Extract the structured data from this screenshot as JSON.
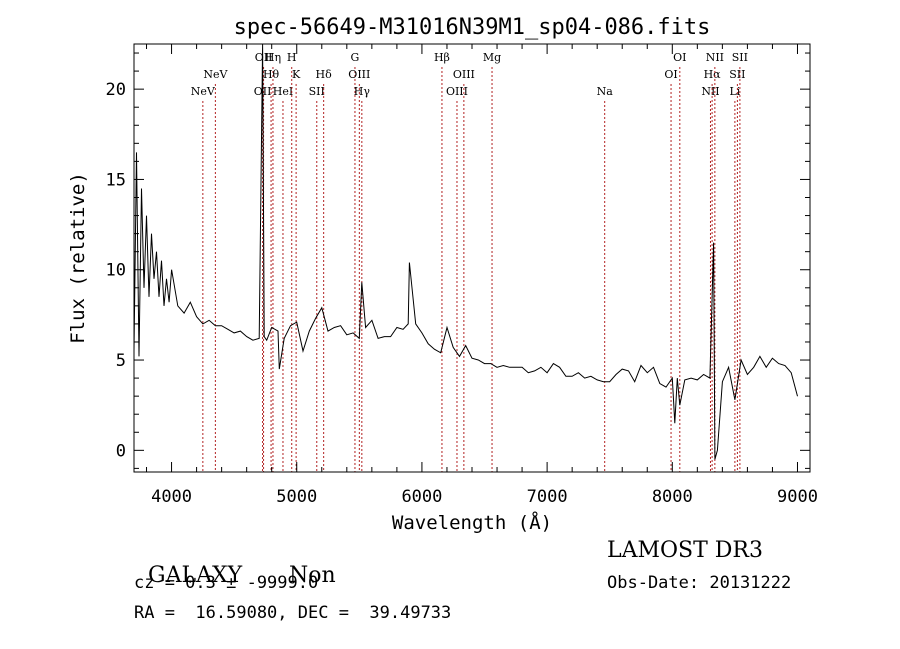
{
  "chart_data": {
    "type": "line",
    "title": "spec-56649-M31016N39M1_sp04-086.fits",
    "xlabel": "Wavelength (Å)",
    "ylabel": "Flux (relative)",
    "xlim": [
      3700,
      9100
    ],
    "ylim": [
      -1.2,
      22.5
    ],
    "x_ticks": [
      4000,
      5000,
      6000,
      7000,
      8000,
      9000
    ],
    "y_ticks": [
      0,
      5,
      10,
      15,
      20
    ],
    "grid": false,
    "series": [
      {
        "name": "spectrum",
        "x": [
          3700,
          3720,
          3740,
          3760,
          3780,
          3800,
          3820,
          3840,
          3860,
          3880,
          3900,
          3920,
          3940,
          3960,
          3980,
          4000,
          4050,
          4100,
          4150,
          4200,
          4250,
          4300,
          4350,
          4400,
          4450,
          4500,
          4550,
          4600,
          4650,
          4700,
          4727,
          4740,
          4760,
          4800,
          4850,
          4861,
          4900,
          4950,
          5000,
          5050,
          5100,
          5150,
          5200,
          5250,
          5300,
          5350,
          5400,
          5450,
          5500,
          5520,
          5550,
          5600,
          5650,
          5700,
          5750,
          5800,
          5850,
          5890,
          5900,
          5950,
          6000,
          6050,
          6100,
          6150,
          6200,
          6250,
          6300,
          6350,
          6400,
          6450,
          6500,
          6550,
          6600,
          6650,
          6700,
          6750,
          6800,
          6850,
          6900,
          6950,
          7000,
          7050,
          7100,
          7150,
          7200,
          7250,
          7300,
          7350,
          7400,
          7450,
          7500,
          7550,
          7600,
          7650,
          7700,
          7750,
          7800,
          7850,
          7900,
          7950,
          8000,
          8020,
          8040,
          8060,
          8100,
          8150,
          8200,
          8250,
          8300,
          8330,
          8340,
          8360,
          8400,
          8450,
          8500,
          8550,
          8600,
          8650,
          8700,
          8750,
          8800,
          8850,
          8900,
          8950,
          9000
        ],
        "y": [
          5.5,
          16.5,
          5.2,
          14.5,
          9.0,
          13.0,
          8.5,
          12.0,
          9.5,
          11.0,
          8.5,
          10.5,
          8.0,
          9.5,
          8.2,
          10.0,
          8.0,
          7.6,
          8.2,
          7.4,
          7.0,
          7.2,
          6.9,
          6.9,
          6.7,
          6.5,
          6.6,
          6.3,
          6.1,
          6.2,
          22.5,
          6.3,
          6.1,
          6.8,
          6.6,
          4.5,
          6.2,
          6.9,
          7.1,
          5.5,
          6.6,
          7.3,
          7.9,
          6.6,
          6.8,
          6.9,
          6.4,
          6.5,
          6.2,
          9.3,
          6.8,
          7.2,
          6.2,
          6.3,
          6.3,
          6.8,
          6.7,
          7.0,
          10.4,
          7.0,
          6.5,
          5.9,
          5.6,
          5.4,
          6.8,
          5.7,
          5.2,
          5.8,
          5.1,
          5.0,
          4.8,
          4.8,
          4.6,
          4.7,
          4.6,
          4.6,
          4.6,
          4.3,
          4.4,
          4.6,
          4.3,
          4.8,
          4.6,
          4.1,
          4.1,
          4.3,
          4.0,
          4.1,
          3.9,
          3.8,
          3.8,
          4.2,
          4.5,
          4.4,
          3.8,
          4.7,
          4.3,
          4.6,
          3.7,
          3.5,
          4.0,
          1.5,
          4.0,
          2.5,
          3.9,
          4.0,
          3.9,
          4.2,
          4.0,
          11.5,
          -0.5,
          0.0,
          3.8,
          4.6,
          2.8,
          5.0,
          4.2,
          4.6,
          5.2,
          4.6,
          5.1,
          4.8,
          4.7,
          4.3,
          3.0
        ]
      }
    ],
    "lines": [
      {
        "name": "NeV",
        "x": 4250,
        "row": 3
      },
      {
        "name": "NeV",
        "x": 4350,
        "row": 2
      },
      {
        "name": "OII",
        "x": 4727,
        "row": 3
      },
      {
        "name": "OII",
        "x": 4735,
        "row": 1
      },
      {
        "name": "Hη",
        "x": 4810,
        "row": 1
      },
      {
        "name": "Hθ",
        "x": 4795,
        "row": 2
      },
      {
        "name": "HeI",
        "x": 4890,
        "row": 3
      },
      {
        "name": "H",
        "x": 4960,
        "row": 1
      },
      {
        "name": "K",
        "x": 4995,
        "row": 2
      },
      {
        "name": "SII",
        "x": 5160,
        "row": 3
      },
      {
        "name": "Hδ",
        "x": 5215,
        "row": 2
      },
      {
        "name": "G",
        "x": 5465,
        "row": 1
      },
      {
        "name": "OIII",
        "x": 5500,
        "row": 2
      },
      {
        "name": "Hγ",
        "x": 5520,
        "row": 3
      },
      {
        "name": "Hβ",
        "x": 6160,
        "row": 1
      },
      {
        "name": "OIII",
        "x": 6280,
        "row": 3
      },
      {
        "name": "OIII",
        "x": 6335,
        "row": 2
      },
      {
        "name": "Mg",
        "x": 6560,
        "row": 1
      },
      {
        "name": "Na",
        "x": 7460,
        "row": 3
      },
      {
        "name": "OI",
        "x": 7990,
        "row": 2
      },
      {
        "name": "OI",
        "x": 8060,
        "row": 1
      },
      {
        "name": "NII",
        "x": 8305,
        "row": 3
      },
      {
        "name": "Hα",
        "x": 8318,
        "row": 2
      },
      {
        "name": "NII",
        "x": 8340,
        "row": 1
      },
      {
        "name": "Li",
        "x": 8500,
        "row": 3
      },
      {
        "name": "SII",
        "x": 8520,
        "row": 2
      },
      {
        "name": "SII",
        "x": 8540,
        "row": 1
      }
    ]
  },
  "info": {
    "class_label": "GALAXY",
    "subclass": "Non",
    "cz": "cz = 0.3 ± -9999.0",
    "radec": "RA =  16.59080, DEC =  39.49733",
    "survey": "LAMOST DR3",
    "obs_date": "Obs-Date: 20131222"
  }
}
